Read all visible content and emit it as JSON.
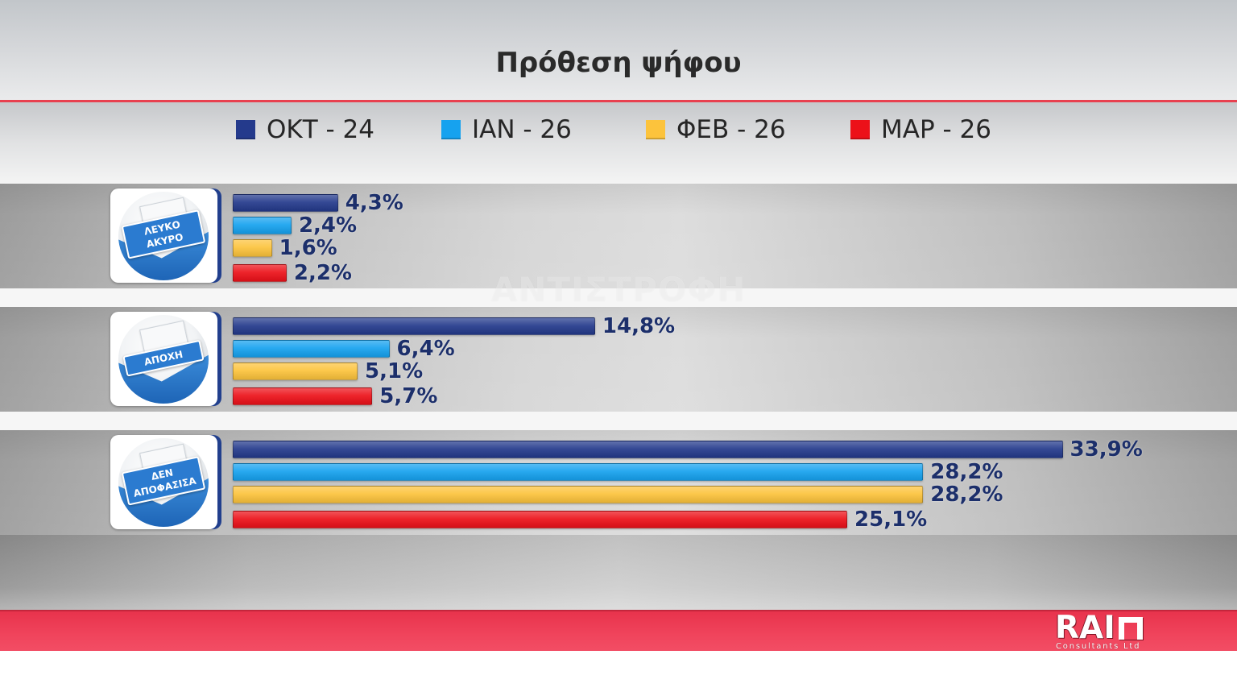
{
  "colors": {
    "header_rule": "#e8404f",
    "footer_band": "#ef3f58",
    "value_label": "#1c2f6b",
    "category_banner": "#2b7bd0"
  },
  "watermark": "ΑΝΤΙΣΤΡΟΦΗ",
  "logo": {
    "name": "RAI",
    "tagline": "Consultants Ltd",
    "mark_icon": "pi-bracket-icon"
  },
  "category_icons": [
    "ballot-envelope-icon",
    "ballot-envelope-icon",
    "ballot-envelope-icon"
  ],
  "chart_data": {
    "type": "bar",
    "orientation": "horizontal",
    "title": "Πρόθεση ψήφου",
    "categories": [
      "ΛΕΥΚΟ ΑΚΥΡΟ",
      "ΑΠΟΧΗ",
      "ΔΕΝ ΑΠΟΦΑΣΙΣΑ"
    ],
    "series": [
      {
        "name": "ΟΚΤ - 24",
        "color": "#243a8c",
        "values": [
          4.3,
          14.8,
          33.9
        ],
        "labels": [
          "4,3%",
          "14,8%",
          "33,9%"
        ]
      },
      {
        "name": "ΙΑΝ - 26",
        "color": "#16a2ef",
        "values": [
          2.4,
          6.4,
          28.2
        ],
        "labels": [
          "2,4%",
          "6,4%",
          "28,2%"
        ]
      },
      {
        "name": "ΦΕΒ - 26",
        "color": "#fcc33c",
        "values": [
          1.6,
          5.1,
          28.2
        ],
        "labels": [
          "1,6%",
          "5,1%",
          "28,2%"
        ]
      },
      {
        "name": "ΜΑΡ - 26",
        "color": "#ec1119",
        "values": [
          2.2,
          5.7,
          25.1
        ],
        "labels": [
          "2,2%",
          "5,7%",
          "25,1%"
        ]
      }
    ],
    "legend": "top",
    "grid": false
  }
}
